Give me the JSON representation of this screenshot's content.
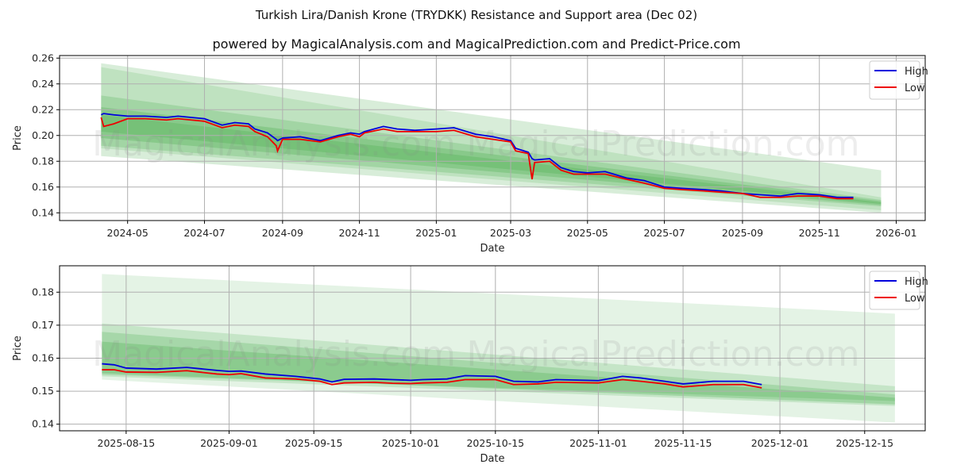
{
  "title": "Turkish Lira/Danish Krone (TRYDKK) Resistance and Support area (Dec 02)",
  "subtitle": "powered by MagicalAnalysis.com and MagicalPrediction.com and Predict-Price.com",
  "watermarks": [
    "MagicalAnalysis.com",
    "MagicalPrediction.com"
  ],
  "colors": {
    "high": "#0000dd",
    "low": "#ee0000",
    "band": "#4caf50"
  },
  "chart_data": [
    {
      "type": "line",
      "xlabel": "Date",
      "ylabel": "Price",
      "ylim": [
        0.134,
        0.262
      ],
      "xlim": [
        "2024-03-08",
        "2026-01-24"
      ],
      "grid": true,
      "legend": "top-right",
      "yticks": [
        0.14,
        0.16,
        0.18,
        0.2,
        0.22,
        0.24,
        0.26
      ],
      "xticks": [
        "2024-05-01",
        "2024-07-01",
        "2024-09-01",
        "2024-11-01",
        "2025-01-01",
        "2025-03-01",
        "2025-05-01",
        "2025-07-01",
        "2025-09-01",
        "2025-11-01",
        "2026-01-01"
      ],
      "xtick_labels": [
        "2024-05",
        "2024-07",
        "2024-09",
        "2024-11",
        "2025-01",
        "2025-03",
        "2025-05",
        "2025-07",
        "2025-09",
        "2025-11",
        "2026-01"
      ],
      "bands": {
        "start": "2024-04-10",
        "end": "2025-12-20",
        "items": [
          [
            0.256,
            0.173,
            0.184,
            0.14,
            0.22
          ],
          [
            0.253,
            0.152,
            0.19,
            0.142,
            0.18
          ],
          [
            0.231,
            0.15,
            0.192,
            0.145,
            0.25
          ],
          [
            0.222,
            0.149,
            0.198,
            0.146,
            0.3
          ],
          [
            0.216,
            0.148,
            0.203,
            0.147,
            0.3
          ]
        ]
      },
      "series": [
        {
          "name": "High",
          "data": [
            [
              "2024-04-10",
              0.216
            ],
            [
              "2024-04-12",
              0.217
            ],
            [
              "2024-04-20",
              0.216
            ],
            [
              "2024-05-01",
              0.215
            ],
            [
              "2024-05-15",
              0.215
            ],
            [
              "2024-06-01",
              0.214
            ],
            [
              "2024-06-10",
              0.215
            ],
            [
              "2024-07-01",
              0.213
            ],
            [
              "2024-07-15",
              0.208
            ],
            [
              "2024-07-25",
              0.21
            ],
            [
              "2024-08-05",
              0.209
            ],
            [
              "2024-08-10",
              0.205
            ],
            [
              "2024-08-20",
              0.202
            ],
            [
              "2024-08-27",
              0.197
            ],
            [
              "2024-08-28",
              0.196
            ],
            [
              "2024-09-01",
              0.198
            ],
            [
              "2024-09-15",
              0.199
            ],
            [
              "2024-10-01",
              0.196
            ],
            [
              "2024-10-15",
              0.2
            ],
            [
              "2024-10-25",
              0.202
            ],
            [
              "2024-11-01",
              0.201
            ],
            [
              "2024-11-05",
              0.203
            ],
            [
              "2024-11-20",
              0.207
            ],
            [
              "2024-12-01",
              0.205
            ],
            [
              "2024-12-15",
              0.204
            ],
            [
              "2025-01-01",
              0.205
            ],
            [
              "2025-01-15",
              0.206
            ],
            [
              "2025-02-01",
              0.201
            ],
            [
              "2025-02-15",
              0.199
            ],
            [
              "2025-03-01",
              0.196
            ],
            [
              "2025-03-05",
              0.19
            ],
            [
              "2025-03-15",
              0.187
            ],
            [
              "2025-03-18",
              0.182
            ],
            [
              "2025-03-20",
              0.181
            ],
            [
              "2025-04-01",
              0.182
            ],
            [
              "2025-04-10",
              0.175
            ],
            [
              "2025-04-20",
              0.172
            ],
            [
              "2025-05-01",
              0.171
            ],
            [
              "2025-05-15",
              0.172
            ],
            [
              "2025-06-01",
              0.167
            ],
            [
              "2025-06-15",
              0.165
            ],
            [
              "2025-07-01",
              0.16
            ],
            [
              "2025-07-15",
              0.159
            ],
            [
              "2025-08-01",
              0.158
            ],
            [
              "2025-08-15",
              0.157
            ],
            [
              "2025-09-01",
              0.155
            ],
            [
              "2025-09-15",
              0.154
            ],
            [
              "2025-10-01",
              0.153
            ],
            [
              "2025-10-15",
              0.155
            ],
            [
              "2025-11-01",
              0.154
            ],
            [
              "2025-11-15",
              0.152
            ],
            [
              "2025-11-28",
              0.152
            ]
          ]
        },
        {
          "name": "Low",
          "data": [
            [
              "2024-04-10",
              0.214
            ],
            [
              "2024-04-12",
              0.207
            ],
            [
              "2024-04-20",
              0.209
            ],
            [
              "2024-05-01",
              0.213
            ],
            [
              "2024-05-15",
              0.213
            ],
            [
              "2024-06-01",
              0.212
            ],
            [
              "2024-06-10",
              0.213
            ],
            [
              "2024-07-01",
              0.211
            ],
            [
              "2024-07-15",
              0.206
            ],
            [
              "2024-07-25",
              0.208
            ],
            [
              "2024-08-05",
              0.207
            ],
            [
              "2024-08-10",
              0.203
            ],
            [
              "2024-08-20",
              0.199
            ],
            [
              "2024-08-27",
              0.192
            ],
            [
              "2024-08-28",
              0.188
            ],
            [
              "2024-09-01",
              0.197
            ],
            [
              "2024-09-15",
              0.197
            ],
            [
              "2024-10-01",
              0.195
            ],
            [
              "2024-10-15",
              0.199
            ],
            [
              "2024-10-25",
              0.201
            ],
            [
              "2024-11-01",
              0.199
            ],
            [
              "2024-11-05",
              0.202
            ],
            [
              "2024-11-20",
              0.205
            ],
            [
              "2024-12-01",
              0.203
            ],
            [
              "2024-12-15",
              0.203
            ],
            [
              "2025-01-01",
              0.203
            ],
            [
              "2025-01-15",
              0.204
            ],
            [
              "2025-02-01",
              0.199
            ],
            [
              "2025-02-15",
              0.197
            ],
            [
              "2025-03-01",
              0.195
            ],
            [
              "2025-03-05",
              0.188
            ],
            [
              "2025-03-15",
              0.186
            ],
            [
              "2025-03-18",
              0.166
            ],
            [
              "2025-03-20",
              0.179
            ],
            [
              "2025-04-01",
              0.18
            ],
            [
              "2025-04-10",
              0.173
            ],
            [
              "2025-04-20",
              0.17
            ],
            [
              "2025-05-01",
              0.17
            ],
            [
              "2025-05-15",
              0.17
            ],
            [
              "2025-06-01",
              0.166
            ],
            [
              "2025-06-15",
              0.163
            ],
            [
              "2025-07-01",
              0.159
            ],
            [
              "2025-07-15",
              0.158
            ],
            [
              "2025-08-01",
              0.157
            ],
            [
              "2025-08-15",
              0.156
            ],
            [
              "2025-09-01",
              0.155
            ],
            [
              "2025-09-15",
              0.152
            ],
            [
              "2025-10-01",
              0.152
            ],
            [
              "2025-10-15",
              0.153
            ],
            [
              "2025-11-01",
              0.153
            ],
            [
              "2025-11-15",
              0.151
            ],
            [
              "2025-11-28",
              0.151
            ]
          ]
        }
      ]
    },
    {
      "type": "line",
      "xlabel": "Date",
      "ylabel": "Price",
      "ylim": [
        0.138,
        0.188
      ],
      "xlim": [
        "2025-08-04",
        "2025-12-25"
      ],
      "grid": true,
      "legend": "top-right",
      "yticks": [
        0.14,
        0.15,
        0.16,
        0.17,
        0.18
      ],
      "xticks": [
        "2025-08-15",
        "2025-09-01",
        "2025-09-15",
        "2025-10-01",
        "2025-10-15",
        "2025-11-01",
        "2025-11-15",
        "2025-12-01",
        "2025-12-15"
      ],
      "xtick_labels": [
        "2025-08-15",
        "2025-09-01",
        "2025-09-15",
        "2025-10-01",
        "2025-10-15",
        "2025-11-01",
        "2025-11-15",
        "2025-12-01",
        "2025-12-15"
      ],
      "bands": {
        "start": "2025-08-11",
        "end": "2025-12-20",
        "items": [
          [
            0.1855,
            0.1735,
            0.1535,
            0.1405,
            0.15
          ],
          [
            0.1705,
            0.1515,
            0.1545,
            0.1455,
            0.2
          ],
          [
            0.168,
            0.149,
            0.155,
            0.147,
            0.25
          ],
          [
            0.165,
            0.148,
            0.1555,
            0.146,
            0.3
          ]
        ]
      },
      "series": [
        {
          "name": "High",
          "data": [
            [
              "2025-08-11",
              0.1583
            ],
            [
              "2025-08-13",
              0.158
            ],
            [
              "2025-08-15",
              0.157
            ],
            [
              "2025-08-20",
              0.1567
            ],
            [
              "2025-08-25",
              0.1572
            ],
            [
              "2025-08-30",
              0.1563
            ],
            [
              "2025-09-01",
              0.156
            ],
            [
              "2025-09-03",
              0.1561
            ],
            [
              "2025-09-07",
              0.1552
            ],
            [
              "2025-09-12",
              0.1545
            ],
            [
              "2025-09-16",
              0.1537
            ],
            [
              "2025-09-18",
              0.1528
            ],
            [
              "2025-09-20",
              0.1536
            ],
            [
              "2025-09-25",
              0.1537
            ],
            [
              "2025-09-28",
              0.1535
            ],
            [
              "2025-10-01",
              0.1533
            ],
            [
              "2025-10-03",
              0.1535
            ],
            [
              "2025-10-07",
              0.1537
            ],
            [
              "2025-10-10",
              0.1547
            ],
            [
              "2025-10-15",
              0.1545
            ],
            [
              "2025-10-18",
              0.153
            ],
            [
              "2025-10-22",
              0.1528
            ],
            [
              "2025-10-25",
              0.1535
            ],
            [
              "2025-11-01",
              0.1532
            ],
            [
              "2025-11-05",
              0.1545
            ],
            [
              "2025-11-08",
              0.154
            ],
            [
              "2025-11-12",
              0.153
            ],
            [
              "2025-11-15",
              0.1522
            ],
            [
              "2025-11-20",
              0.153
            ],
            [
              "2025-11-25",
              0.153
            ],
            [
              "2025-11-28",
              0.152
            ]
          ]
        },
        {
          "name": "Low",
          "data": [
            [
              "2025-08-11",
              0.1565
            ],
            [
              "2025-08-13",
              0.1565
            ],
            [
              "2025-08-15",
              0.1558
            ],
            [
              "2025-08-20",
              0.1557
            ],
            [
              "2025-08-25",
              0.1562
            ],
            [
              "2025-08-30",
              0.1552
            ],
            [
              "2025-09-01",
              0.155
            ],
            [
              "2025-09-03",
              0.1553
            ],
            [
              "2025-09-07",
              0.154
            ],
            [
              "2025-09-12",
              0.1537
            ],
            [
              "2025-09-16",
              0.153
            ],
            [
              "2025-09-18",
              0.152
            ],
            [
              "2025-09-20",
              0.1525
            ],
            [
              "2025-09-25",
              0.1527
            ],
            [
              "2025-09-28",
              0.1524
            ],
            [
              "2025-10-01",
              0.1523
            ],
            [
              "2025-10-03",
              0.1525
            ],
            [
              "2025-10-07",
              0.1527
            ],
            [
              "2025-10-10",
              0.1535
            ],
            [
              "2025-10-15",
              0.1535
            ],
            [
              "2025-10-18",
              0.152
            ],
            [
              "2025-10-22",
              0.1522
            ],
            [
              "2025-10-25",
              0.1527
            ],
            [
              "2025-11-01",
              0.1525
            ],
            [
              "2025-11-05",
              0.1535
            ],
            [
              "2025-11-08",
              0.153
            ],
            [
              "2025-11-12",
              0.1522
            ],
            [
              "2025-11-15",
              0.1513
            ],
            [
              "2025-11-20",
              0.152
            ],
            [
              "2025-11-25",
              0.152
            ],
            [
              "2025-11-28",
              0.151
            ]
          ]
        }
      ]
    }
  ]
}
